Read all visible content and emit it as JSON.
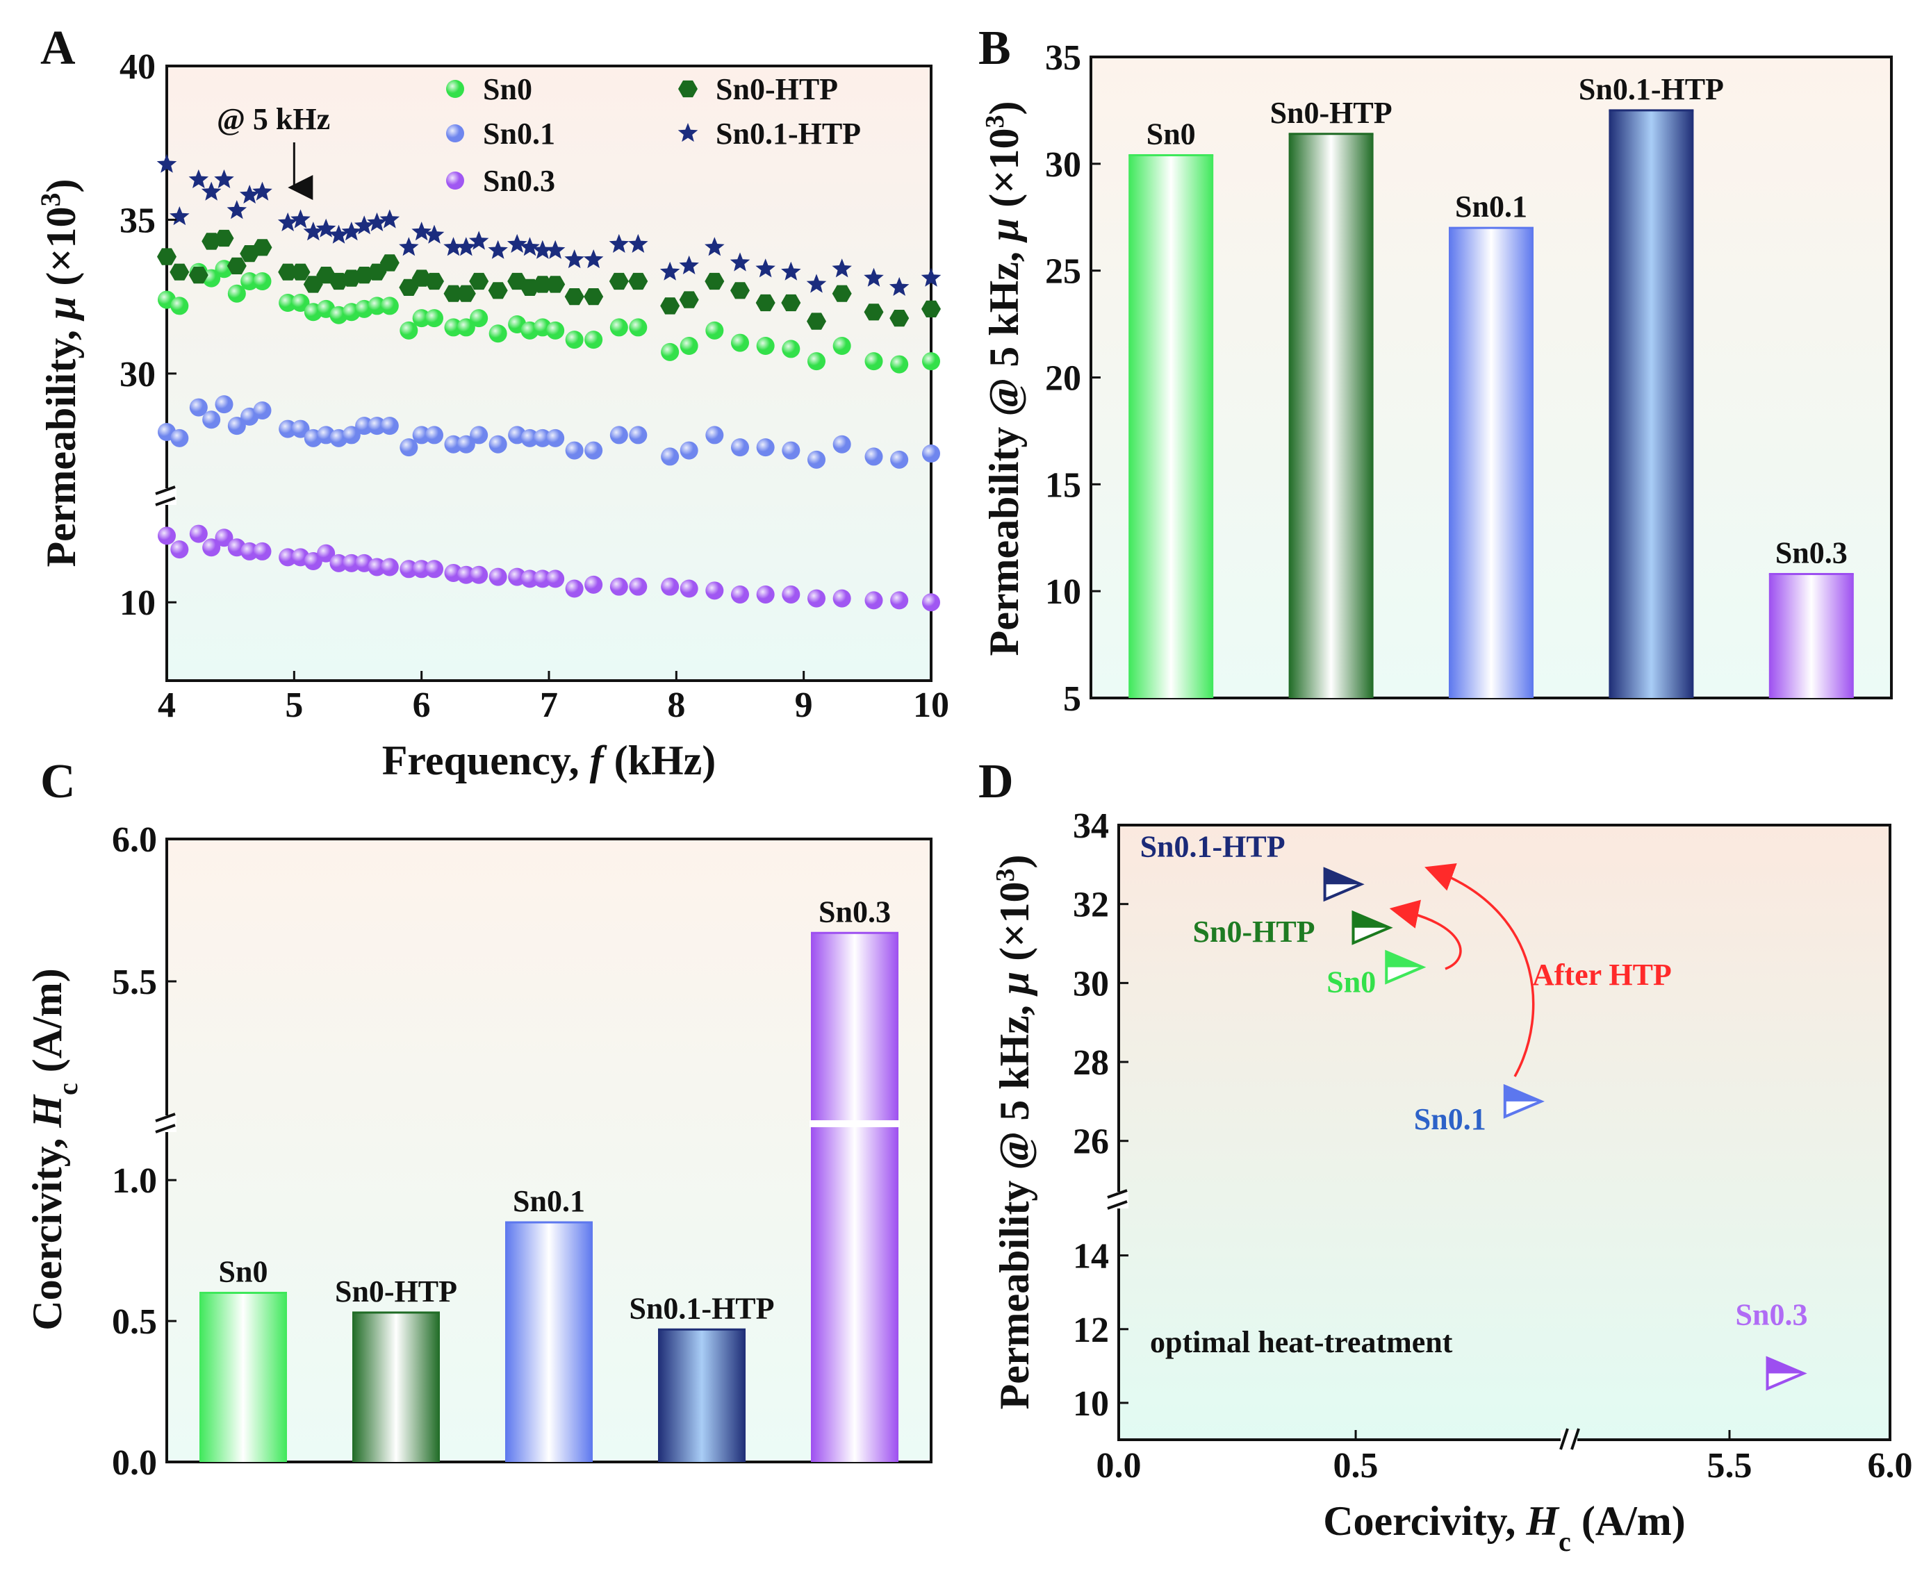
{
  "chart_data": [
    {
      "panel": "A",
      "type": "scatter",
      "xlabel": "Frequency, f (kHz)",
      "xlabel_parts": {
        "pre": "Frequency, ",
        "var": "f",
        "post": " (kHz)"
      },
      "ylabel": "Permeability, μ (×10³)",
      "ylabel_parts": {
        "pre": "Permeability, ",
        "var": "μ",
        "post": " (×10",
        "sup": "3",
        "close": ")"
      },
      "xlim": [
        4,
        10
      ],
      "xticks": [
        "4",
        "5",
        "6",
        "7",
        "8",
        "9",
        "10"
      ],
      "yticks_upper": [
        "40",
        "35",
        "30"
      ],
      "yticks_lower": [
        "10"
      ],
      "ylim_upper": [
        26,
        40
      ],
      "ylim_lower": [
        8,
        12.7
      ],
      "axis_break": true,
      "annotation": "@ 5 kHz",
      "annotation_x": 5,
      "x": [
        4.0,
        4.1,
        4.25,
        4.35,
        4.45,
        4.55,
        4.65,
        4.75,
        4.95,
        5.05,
        5.15,
        5.25,
        5.35,
        5.45,
        5.55,
        5.65,
        5.75,
        5.9,
        6.0,
        6.1,
        6.25,
        6.35,
        6.45,
        6.6,
        6.75,
        6.85,
        6.95,
        7.05,
        7.2,
        7.35,
        7.55,
        7.7,
        7.95,
        8.1,
        8.3,
        8.5,
        8.7,
        8.9,
        9.1,
        9.3,
        9.55,
        9.75,
        10.0
      ],
      "series": [
        {
          "name": "Sn0",
          "marker": "circle",
          "color": "#33e04a",
          "values": [
            32.4,
            32.2,
            33.3,
            33.1,
            33.4,
            32.6,
            33.0,
            33.0,
            32.3,
            32.3,
            32.0,
            32.1,
            31.9,
            32.0,
            32.1,
            32.2,
            32.2,
            31.4,
            31.8,
            31.8,
            31.5,
            31.5,
            31.8,
            31.3,
            31.6,
            31.4,
            31.5,
            31.4,
            31.1,
            31.1,
            31.5,
            31.5,
            30.7,
            30.9,
            31.4,
            31.0,
            30.9,
            30.8,
            30.4,
            30.9,
            30.4,
            30.3,
            30.4
          ]
        },
        {
          "name": "Sn0.1",
          "marker": "circle",
          "color": "#6f86ee",
          "values": [
            28.1,
            27.9,
            28.9,
            28.5,
            29.0,
            28.3,
            28.6,
            28.8,
            28.2,
            28.2,
            27.9,
            28.0,
            27.9,
            28.0,
            28.3,
            28.3,
            28.3,
            27.6,
            28.0,
            28.0,
            27.7,
            27.7,
            28.0,
            27.7,
            28.0,
            27.9,
            27.9,
            27.9,
            27.5,
            27.5,
            28.0,
            28.0,
            27.3,
            27.5,
            28.0,
            27.6,
            27.6,
            27.5,
            27.2,
            27.7,
            27.3,
            27.2,
            27.4
          ]
        },
        {
          "name": "Sn0.3",
          "marker": "circle",
          "color": "#a057f2",
          "values": [
            11.7,
            11.35,
            11.75,
            11.4,
            11.65,
            11.4,
            11.3,
            11.3,
            11.15,
            11.15,
            11.05,
            11.25,
            11.0,
            11.0,
            11.0,
            10.9,
            10.9,
            10.85,
            10.85,
            10.85,
            10.75,
            10.7,
            10.7,
            10.65,
            10.65,
            10.6,
            10.6,
            10.6,
            10.35,
            10.45,
            10.4,
            10.4,
            10.4,
            10.35,
            10.3,
            10.2,
            10.2,
            10.2,
            10.1,
            10.1,
            10.05,
            10.05,
            10.0
          ]
        },
        {
          "name": "Sn0-HTP",
          "marker": "hexagon",
          "color": "#1a6b1e",
          "values": [
            33.8,
            33.3,
            33.2,
            34.3,
            34.4,
            33.5,
            33.9,
            34.1,
            33.3,
            33.3,
            32.9,
            33.2,
            33.0,
            33.1,
            33.2,
            33.3,
            33.6,
            32.8,
            33.1,
            33.0,
            32.6,
            32.6,
            33.0,
            32.7,
            33.0,
            32.8,
            32.9,
            32.9,
            32.5,
            32.5,
            33.0,
            33.0,
            32.2,
            32.4,
            33.0,
            32.7,
            32.3,
            32.3,
            31.7,
            32.6,
            32.0,
            31.8,
            32.1
          ]
        },
        {
          "name": "Sn0.1-HTP",
          "marker": "star",
          "color": "#1b2c7e",
          "values": [
            36.8,
            35.1,
            36.3,
            35.9,
            36.3,
            35.3,
            35.8,
            35.9,
            34.9,
            35.0,
            34.6,
            34.7,
            34.5,
            34.6,
            34.8,
            34.9,
            35.0,
            34.1,
            34.6,
            34.5,
            34.1,
            34.1,
            34.3,
            34.0,
            34.2,
            34.1,
            34.0,
            34.0,
            33.7,
            33.7,
            34.2,
            34.2,
            33.3,
            33.5,
            34.1,
            33.6,
            33.4,
            33.3,
            32.9,
            33.4,
            33.1,
            32.8,
            33.1
          ]
        }
      ]
    },
    {
      "panel": "B",
      "type": "bar",
      "ylabel": "Permeability @ 5 kHz, μ (×10³)",
      "ylabel_parts": {
        "pre": "Permeability @ 5 kHz, ",
        "var": "μ",
        "post": " (×10",
        "sup": "3",
        "close": ")"
      },
      "ylim": [
        5,
        35
      ],
      "yticks": [
        "5",
        "10",
        "15",
        "20",
        "25",
        "30",
        "35"
      ],
      "categories": [
        "Sn0",
        "Sn0-HTP",
        "Sn0.1",
        "Sn0.1-HTP",
        "Sn0.3"
      ],
      "values": [
        30.4,
        31.4,
        27.0,
        32.5,
        10.8
      ],
      "colors": [
        "#3ee85a",
        "#1f6b25",
        "#5c77ee",
        "#1e2d76",
        "#9d4ff0"
      ],
      "inner_colors": [
        "#ffffff",
        "#ffffff",
        "#ffffff",
        "#a9cdf6",
        "#ffffff"
      ]
    },
    {
      "panel": "C",
      "type": "bar",
      "ylabel": "Coercivity, Hc (A/m)",
      "ylabel_parts": {
        "pre": "Coercivity, ",
        "var": "H",
        "sub": "c",
        "post": " (A/m)"
      },
      "axis_break": true,
      "ylim_lower": [
        0,
        1.2
      ],
      "ylim_upper": [
        5.0,
        6.0
      ],
      "yticks_lower": [
        "0.0",
        "0.5",
        "1.0"
      ],
      "yticks_upper": [
        "5.5",
        "6.0"
      ],
      "categories": [
        "Sn0",
        "Sn0-HTP",
        "Sn0.1",
        "Sn0.1-HTP",
        "Sn0.3"
      ],
      "values": [
        0.6,
        0.53,
        0.85,
        0.47,
        5.67
      ],
      "colors": [
        "#3ee85a",
        "#1f6b25",
        "#5c77ee",
        "#1e2d76",
        "#9d4ff0"
      ],
      "inner_colors": [
        "#ffffff",
        "#ffffff",
        "#ffffff",
        "#a9cdf6",
        "#ffffff"
      ]
    },
    {
      "panel": "D",
      "type": "scatter",
      "xlabel": "Coercivity, Hc (A/m)",
      "xlabel_parts": {
        "pre": "Coercivity, ",
        "var": "H",
        "sub": "c",
        "post": " (A/m)"
      },
      "ylabel": "Permeability @ 5 kHz, μ (×10³)",
      "ylabel_parts": {
        "pre": "Permeability @ 5 kHz, ",
        "var": "μ",
        "post": " (×10",
        "sup": "3",
        "close": ")"
      },
      "axis_break_x": true,
      "axis_break_y": true,
      "xlim_lower": [
        0,
        0.95
      ],
      "xlim_upper": [
        5.0,
        6.0
      ],
      "xticks_lower": [
        "0.0",
        "0.5"
      ],
      "xticks_upper": [
        "5.5",
        "6.0"
      ],
      "ylim_lower": [
        9,
        15.5
      ],
      "ylim_upper": [
        24.5,
        34
      ],
      "yticks_lower": [
        "10",
        "12",
        "14"
      ],
      "yticks_upper": [
        "26",
        "28",
        "30",
        "32",
        "34"
      ],
      "points": [
        {
          "name": "Sn0",
          "x": 0.6,
          "y": 30.4,
          "color": "#3ee85a",
          "label_color": "#33e04a"
        },
        {
          "name": "Sn0-HTP",
          "x": 0.53,
          "y": 31.4,
          "color": "#1a7a1e",
          "label_color": "#1e7b22"
        },
        {
          "name": "Sn0.1",
          "x": 0.85,
          "y": 27.0,
          "color": "#5c77ee",
          "label_color": "#2d62c8"
        },
        {
          "name": "Sn0.1-HTP",
          "x": 0.47,
          "y": 32.5,
          "color": "#1e2d76",
          "label_color": "#1b2a78"
        },
        {
          "name": "Sn0.3",
          "x": 5.67,
          "y": 10.8,
          "color": "#9d4ff0",
          "label_color": "#b06cf5"
        }
      ],
      "annotation": "After HTP",
      "note": "optimal heat-treatment"
    }
  ],
  "panels": {
    "a": "A",
    "b": "B",
    "c": "C",
    "d": "D"
  }
}
